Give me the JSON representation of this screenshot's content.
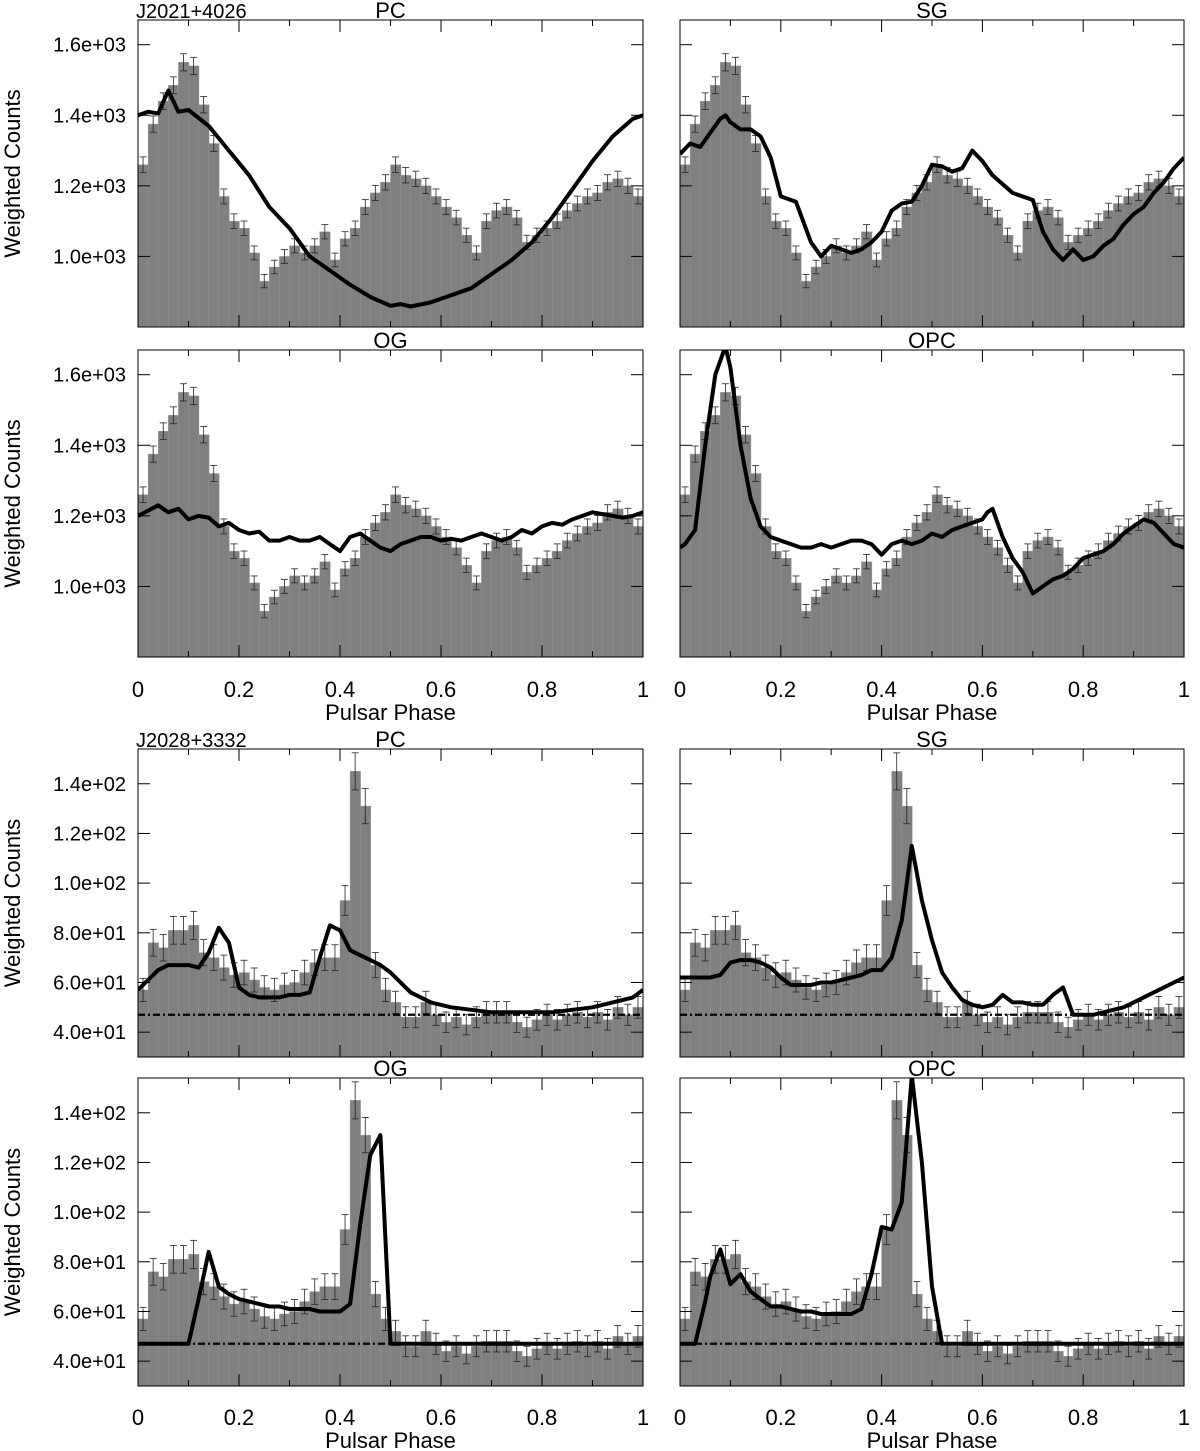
{
  "figure": {
    "x_label": "Pulsar Phase",
    "y_label": "Weighted Counts",
    "x_tick_labels": [
      "0",
      "0.2",
      "0.4",
      "0.6",
      "0.8",
      "1"
    ],
    "histogram_color": "#808080",
    "line_color": "#000000"
  },
  "groups": [
    {
      "pulsar": "J2021+4026",
      "y_tick_labels": [
        "1.0e+03",
        "1.2e+03",
        "1.4e+03",
        "1.6e+03"
      ],
      "y_tick_values": [
        1000,
        1200,
        1400,
        1600
      ],
      "ylim": [
        800,
        1670
      ],
      "baseline": null
    },
    {
      "pulsar": "J2028+3332",
      "y_tick_labels": [
        "4.0e+01",
        "6.0e+01",
        "8.0e+01",
        "1.0e+02",
        "1.2e+02",
        "1.4e+02"
      ],
      "y_tick_values": [
        40,
        60,
        80,
        100,
        120,
        140
      ],
      "ylim": [
        30,
        154
      ],
      "baseline": 47
    }
  ],
  "chart_data": [
    {
      "type": "bar+line",
      "group": 0,
      "title": "PC",
      "xlabel": "Pulsar Phase",
      "ylabel": "Weighted Counts",
      "xlim": [
        0,
        1
      ],
      "ylim": [
        800,
        1670
      ],
      "histogram": [
        1260,
        1375,
        1440,
        1485,
        1550,
        1540,
        1430,
        1320,
        1170,
        1100,
        1080,
        1010,
        930,
        970,
        1000,
        1030,
        1010,
        1030,
        1070,
        990,
        1050,
        1080,
        1140,
        1180,
        1210,
        1260,
        1230,
        1220,
        1200,
        1170,
        1140,
        1110,
        1060,
        1010,
        1100,
        1130,
        1140,
        1110,
        1040,
        1060,
        1080,
        1100,
        1130,
        1150,
        1170,
        1180,
        1210,
        1220,
        1200,
        1170
      ],
      "curve": {
        "x": [
          0,
          0.02,
          0.04,
          0.06,
          0.08,
          0.1,
          0.14,
          0.18,
          0.22,
          0.26,
          0.3,
          0.34,
          0.38,
          0.42,
          0.46,
          0.5,
          0.52,
          0.54,
          0.58,
          0.62,
          0.66,
          0.7,
          0.74,
          0.78,
          0.82,
          0.86,
          0.9,
          0.94,
          0.98,
          1.0
        ],
        "y": [
          1400,
          1410,
          1405,
          1470,
          1410,
          1415,
          1370,
          1300,
          1230,
          1140,
          1080,
          1000,
          960,
          920,
          885,
          860,
          865,
          858,
          870,
          890,
          910,
          950,
          990,
          1040,
          1110,
          1190,
          1270,
          1340,
          1390,
          1400
        ]
      }
    },
    {
      "type": "bar+line",
      "group": 0,
      "title": "SG",
      "xlabel": "Pulsar Phase",
      "ylabel": "Weighted Counts",
      "xlim": [
        0,
        1
      ],
      "ylim": [
        800,
        1670
      ],
      "histogram": [
        1260,
        1375,
        1440,
        1485,
        1550,
        1540,
        1430,
        1320,
        1170,
        1100,
        1080,
        1010,
        930,
        970,
        1000,
        1030,
        1010,
        1030,
        1070,
        990,
        1050,
        1080,
        1140,
        1180,
        1210,
        1260,
        1230,
        1220,
        1200,
        1170,
        1140,
        1110,
        1060,
        1010,
        1100,
        1130,
        1140,
        1110,
        1040,
        1060,
        1080,
        1100,
        1130,
        1150,
        1170,
        1180,
        1210,
        1220,
        1200,
        1170
      ],
      "curve": {
        "x": [
          0,
          0.02,
          0.04,
          0.06,
          0.08,
          0.09,
          0.1,
          0.12,
          0.14,
          0.16,
          0.18,
          0.2,
          0.23,
          0.26,
          0.28,
          0.3,
          0.32,
          0.34,
          0.36,
          0.38,
          0.4,
          0.42,
          0.44,
          0.46,
          0.48,
          0.5,
          0.52,
          0.54,
          0.56,
          0.58,
          0.6,
          0.62,
          0.66,
          0.7,
          0.72,
          0.74,
          0.76,
          0.78,
          0.8,
          0.82,
          0.84,
          0.86,
          0.88,
          0.9,
          0.92,
          0.94,
          0.96,
          0.98,
          1.0
        ],
        "y": [
          1290,
          1320,
          1310,
          1350,
          1390,
          1400,
          1380,
          1360,
          1360,
          1340,
          1280,
          1170,
          1155,
          1040,
          1000,
          1030,
          1020,
          1010,
          1020,
          1040,
          1070,
          1130,
          1150,
          1155,
          1200,
          1260,
          1255,
          1240,
          1250,
          1300,
          1270,
          1230,
          1180,
          1160,
          1070,
          1020,
          990,
          1020,
          990,
          1000,
          1030,
          1050,
          1090,
          1120,
          1140,
          1180,
          1210,
          1250,
          1280
        ]
      }
    },
    {
      "type": "bar+line",
      "group": 0,
      "title": "OG",
      "xlabel": "Pulsar Phase",
      "ylabel": "Weighted Counts",
      "xlim": [
        0,
        1
      ],
      "ylim": [
        800,
        1670
      ],
      "histogram": [
        1260,
        1375,
        1440,
        1485,
        1550,
        1540,
        1430,
        1320,
        1170,
        1100,
        1080,
        1010,
        930,
        970,
        1000,
        1030,
        1010,
        1030,
        1070,
        990,
        1050,
        1080,
        1140,
        1180,
        1210,
        1260,
        1230,
        1220,
        1200,
        1170,
        1140,
        1110,
        1060,
        1010,
        1100,
        1130,
        1140,
        1110,
        1040,
        1060,
        1080,
        1100,
        1130,
        1150,
        1170,
        1180,
        1210,
        1220,
        1200,
        1170
      ],
      "curve": {
        "x": [
          0,
          0.02,
          0.04,
          0.06,
          0.08,
          0.1,
          0.12,
          0.14,
          0.16,
          0.18,
          0.2,
          0.22,
          0.24,
          0.26,
          0.28,
          0.3,
          0.32,
          0.34,
          0.36,
          0.38,
          0.4,
          0.42,
          0.44,
          0.46,
          0.48,
          0.5,
          0.52,
          0.54,
          0.56,
          0.58,
          0.6,
          0.62,
          0.64,
          0.66,
          0.68,
          0.7,
          0.72,
          0.74,
          0.76,
          0.78,
          0.8,
          0.82,
          0.84,
          0.86,
          0.88,
          0.9,
          0.92,
          0.94,
          0.96,
          0.98,
          1.0
        ],
        "y": [
          1200,
          1215,
          1230,
          1210,
          1220,
          1190,
          1200,
          1195,
          1170,
          1180,
          1160,
          1150,
          1155,
          1130,
          1130,
          1140,
          1130,
          1130,
          1140,
          1120,
          1100,
          1140,
          1150,
          1130,
          1110,
          1100,
          1120,
          1130,
          1140,
          1140,
          1130,
          1135,
          1130,
          1140,
          1150,
          1140,
          1130,
          1140,
          1160,
          1150,
          1170,
          1180,
          1175,
          1190,
          1200,
          1210,
          1205,
          1200,
          1195,
          1200,
          1210
        ]
      }
    },
    {
      "type": "bar+line",
      "group": 0,
      "title": "OPC",
      "xlabel": "Pulsar Phase",
      "ylabel": "Weighted Counts",
      "xlim": [
        0,
        1
      ],
      "ylim": [
        800,
        1670
      ],
      "histogram": [
        1260,
        1375,
        1440,
        1485,
        1550,
        1540,
        1430,
        1320,
        1170,
        1100,
        1080,
        1010,
        930,
        970,
        1000,
        1030,
        1010,
        1030,
        1070,
        990,
        1050,
        1080,
        1140,
        1180,
        1210,
        1260,
        1230,
        1220,
        1200,
        1170,
        1140,
        1110,
        1060,
        1010,
        1100,
        1130,
        1140,
        1110,
        1040,
        1060,
        1080,
        1100,
        1130,
        1150,
        1170,
        1180,
        1210,
        1220,
        1200,
        1170
      ],
      "curve": {
        "x": [
          0,
          0.01,
          0.03,
          0.05,
          0.07,
          0.09,
          0.1,
          0.12,
          0.14,
          0.16,
          0.18,
          0.2,
          0.22,
          0.24,
          0.26,
          0.28,
          0.3,
          0.32,
          0.34,
          0.36,
          0.38,
          0.4,
          0.42,
          0.44,
          0.46,
          0.48,
          0.5,
          0.52,
          0.54,
          0.56,
          0.58,
          0.6,
          0.61,
          0.62,
          0.64,
          0.66,
          0.68,
          0.7,
          0.72,
          0.74,
          0.76,
          0.78,
          0.8,
          0.82,
          0.84,
          0.86,
          0.88,
          0.9,
          0.92,
          0.94,
          0.96,
          0.98,
          1.0
        ],
        "y": [
          1110,
          1120,
          1160,
          1400,
          1600,
          1680,
          1620,
          1400,
          1250,
          1170,
          1140,
          1130,
          1120,
          1110,
          1110,
          1120,
          1110,
          1120,
          1130,
          1130,
          1120,
          1090,
          1120,
          1130,
          1120,
          1130,
          1150,
          1140,
          1160,
          1170,
          1180,
          1190,
          1210,
          1220,
          1140,
          1080,
          1040,
          980,
          1000,
          1020,
          1030,
          1050,
          1080,
          1090,
          1100,
          1120,
          1150,
          1170,
          1190,
          1180,
          1150,
          1120,
          1110
        ]
      }
    },
    {
      "type": "bar+line",
      "group": 1,
      "title": "PC",
      "xlabel": "Pulsar Phase",
      "ylabel": "Weighted Counts",
      "xlim": [
        0,
        1
      ],
      "ylim": [
        30,
        154
      ],
      "histogram": [
        57,
        76,
        74,
        81,
        81,
        83,
        72,
        70,
        66,
        63,
        64,
        61,
        58,
        57,
        59,
        60,
        64,
        68,
        70,
        70,
        93,
        145,
        131,
        67,
        57,
        52,
        46,
        46,
        52,
        47,
        44,
        46,
        43,
        46,
        48,
        48,
        48,
        44,
        42,
        45,
        47,
        45,
        47,
        48,
        46,
        48,
        45,
        50,
        47,
        50
      ],
      "curve": {
        "x": [
          0,
          0.02,
          0.04,
          0.06,
          0.08,
          0.1,
          0.12,
          0.14,
          0.16,
          0.18,
          0.2,
          0.22,
          0.24,
          0.26,
          0.28,
          0.3,
          0.32,
          0.34,
          0.36,
          0.38,
          0.4,
          0.42,
          0.44,
          0.46,
          0.48,
          0.5,
          0.54,
          0.58,
          0.62,
          0.66,
          0.7,
          0.74,
          0.78,
          0.82,
          0.86,
          0.9,
          0.94,
          0.98,
          1.0
        ],
        "y": [
          57,
          61,
          65,
          67,
          67,
          67,
          66,
          72,
          82,
          76,
          58,
          55,
          54,
          54,
          54,
          55,
          55,
          56,
          70,
          83,
          81,
          73,
          71,
          69,
          67,
          64,
          56,
          52,
          50,
          49,
          48,
          48,
          48,
          48,
          49,
          50,
          52,
          54,
          57
        ]
      },
      "baseline": 47
    },
    {
      "type": "bar+line",
      "group": 1,
      "title": "SG",
      "xlabel": "Pulsar Phase",
      "ylabel": "Weighted Counts",
      "xlim": [
        0,
        1
      ],
      "ylim": [
        30,
        154
      ],
      "histogram": [
        57,
        76,
        74,
        81,
        81,
        83,
        72,
        70,
        66,
        63,
        64,
        61,
        58,
        57,
        59,
        60,
        64,
        68,
        70,
        70,
        93,
        145,
        131,
        67,
        57,
        52,
        46,
        46,
        52,
        47,
        44,
        46,
        43,
        46,
        48,
        48,
        48,
        44,
        42,
        45,
        47,
        45,
        47,
        48,
        46,
        48,
        45,
        50,
        47,
        50
      ],
      "curve": {
        "x": [
          0,
          0.02,
          0.04,
          0.06,
          0.08,
          0.1,
          0.12,
          0.14,
          0.16,
          0.18,
          0.2,
          0.22,
          0.24,
          0.26,
          0.28,
          0.3,
          0.32,
          0.34,
          0.36,
          0.38,
          0.4,
          0.42,
          0.44,
          0.46,
          0.48,
          0.5,
          0.52,
          0.54,
          0.56,
          0.58,
          0.6,
          0.62,
          0.64,
          0.66,
          0.68,
          0.7,
          0.72,
          0.74,
          0.76,
          0.78,
          0.8,
          0.82,
          0.84,
          0.86,
          0.88,
          0.9,
          0.92,
          0.94,
          0.96,
          0.98,
          1.0
        ],
        "y": [
          62,
          62,
          62,
          62,
          63,
          68,
          69,
          69,
          68,
          66,
          62,
          59,
          59,
          59,
          60,
          60,
          61,
          62,
          63,
          65,
          65,
          70,
          85,
          115,
          93,
          77,
          64,
          58,
          53,
          51,
          50,
          51,
          55,
          52,
          52,
          51,
          51,
          55,
          58,
          47,
          47,
          47,
          48,
          49,
          50,
          52,
          54,
          56,
          58,
          60,
          62
        ]
      },
      "baseline": 47
    },
    {
      "type": "bar+line",
      "group": 1,
      "title": "OG",
      "xlabel": "Pulsar Phase",
      "ylabel": "Weighted Counts",
      "xlim": [
        0,
        1
      ],
      "ylim": [
        30,
        154
      ],
      "histogram": [
        57,
        76,
        74,
        81,
        81,
        83,
        72,
        70,
        66,
        63,
        64,
        61,
        58,
        57,
        59,
        60,
        64,
        68,
        70,
        70,
        93,
        145,
        131,
        67,
        57,
        52,
        46,
        46,
        52,
        47,
        44,
        46,
        43,
        46,
        48,
        48,
        48,
        44,
        42,
        45,
        47,
        45,
        47,
        48,
        46,
        48,
        45,
        50,
        47,
        50
      ],
      "curve": {
        "x": [
          0,
          0.1,
          0.12,
          0.14,
          0.16,
          0.18,
          0.2,
          0.22,
          0.24,
          0.26,
          0.28,
          0.3,
          0.32,
          0.34,
          0.36,
          0.38,
          0.4,
          0.42,
          0.44,
          0.46,
          0.48,
          0.5,
          0.52,
          0.54,
          0.56,
          0.58,
          0.6,
          0.7,
          0.8,
          0.9,
          1.0
        ],
        "y": [
          47,
          47,
          65,
          84,
          70,
          67,
          65,
          64,
          63,
          62,
          62,
          61,
          61,
          61,
          60,
          60,
          60,
          63,
          95,
          123,
          131,
          47,
          47,
          47,
          47,
          47,
          47,
          47,
          47,
          47,
          47
        ]
      },
      "baseline": 47
    },
    {
      "type": "bar+line",
      "group": 1,
      "title": "OPC",
      "xlabel": "Pulsar Phase",
      "ylabel": "Weighted Counts",
      "xlim": [
        0,
        1
      ],
      "ylim": [
        30,
        154
      ],
      "histogram": [
        57,
        76,
        74,
        81,
        81,
        83,
        72,
        70,
        66,
        63,
        64,
        61,
        58,
        57,
        59,
        60,
        64,
        68,
        70,
        70,
        93,
        145,
        131,
        67,
        57,
        52,
        46,
        46,
        52,
        47,
        44,
        46,
        43,
        46,
        48,
        48,
        48,
        44,
        42,
        45,
        47,
        45,
        47,
        48,
        46,
        48,
        45,
        50,
        47,
        50
      ],
      "curve": {
        "x": [
          0,
          0.03,
          0.05,
          0.06,
          0.08,
          0.1,
          0.12,
          0.14,
          0.16,
          0.18,
          0.2,
          0.22,
          0.24,
          0.26,
          0.28,
          0.3,
          0.32,
          0.34,
          0.36,
          0.38,
          0.4,
          0.42,
          0.44,
          0.46,
          0.48,
          0.5,
          0.52,
          0.6,
          0.7,
          0.8,
          0.9,
          1.0
        ],
        "y": [
          47,
          47,
          64,
          74,
          85,
          71,
          75,
          68,
          65,
          62,
          62,
          61,
          60,
          60,
          59,
          59,
          59,
          59,
          61,
          75,
          94,
          93,
          104,
          155,
          120,
          70,
          47,
          47,
          47,
          47,
          47,
          47
        ]
      },
      "baseline": 47
    }
  ]
}
